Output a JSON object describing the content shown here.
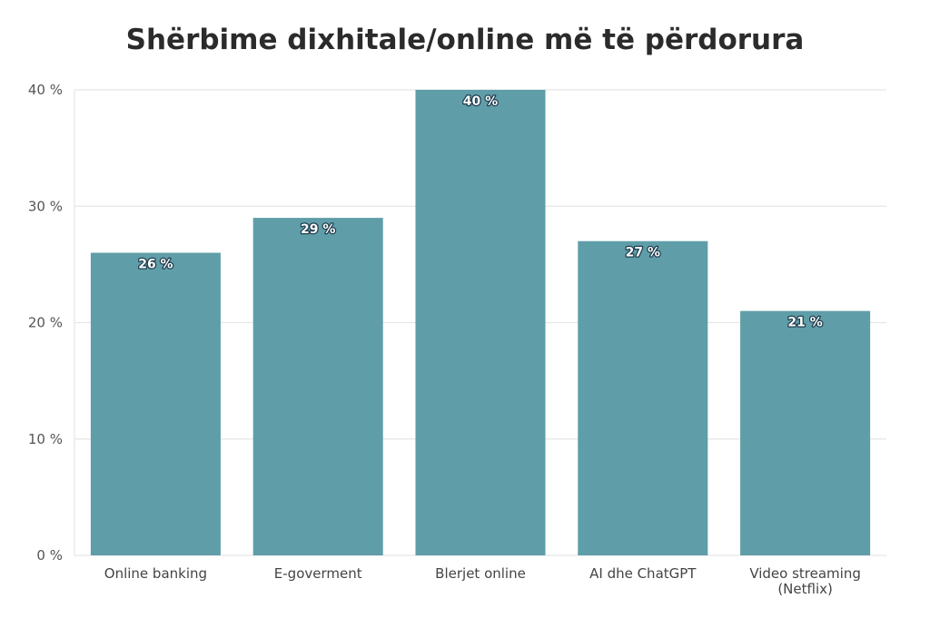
{
  "chart_data": {
    "type": "bar",
    "title": "Shërbime dixhitale/online më të përdorura",
    "categories": [
      "Online banking",
      "E-goverment",
      "Blerjet online",
      "AI dhe ChatGPT",
      "Video streaming (Netflix)"
    ],
    "category_lines": [
      [
        "Online banking"
      ],
      [
        "E-goverment"
      ],
      [
        "Blerjet online"
      ],
      [
        "AI dhe ChatGPT"
      ],
      [
        "Video streaming",
        "(Netflix)"
      ]
    ],
    "values": [
      26,
      29,
      40,
      27,
      21
    ],
    "value_labels": [
      "26 %",
      "29 %",
      "40 %",
      "27 %",
      "21 %"
    ],
    "yticks": [
      0,
      10,
      20,
      30,
      40
    ],
    "ytick_labels": [
      "0 %",
      "10 %",
      "20 %",
      "30 %",
      "40 %"
    ],
    "ylim": [
      0,
      40
    ],
    "grid": true,
    "bar_color": "#5f9ea8",
    "xlabel": "",
    "ylabel": ""
  }
}
